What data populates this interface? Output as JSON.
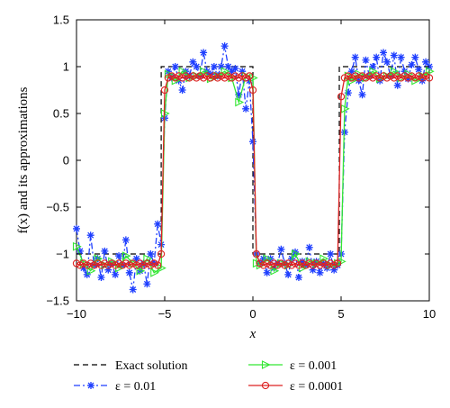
{
  "chart_data": {
    "type": "line",
    "xlabel": "x",
    "ylabel": "f(x) and its approximations",
    "xlim": [
      -10,
      10
    ],
    "ylim": [
      -1.5,
      1.5
    ],
    "xticks": [
      -10,
      -5,
      0,
      5,
      10
    ],
    "yticks": [
      1.5,
      1,
      0.5,
      0,
      -0.5,
      -1,
      -1.5
    ],
    "xtick_labels": [
      "−10",
      "−5",
      "0",
      "5",
      "10"
    ],
    "ytick_labels": [
      "1.5",
      "1",
      "0.5",
      "0",
      "−0.5",
      "−1",
      "−1.5"
    ],
    "grid": false,
    "legend_position": "bottom (below plot, two columns)",
    "series": [
      {
        "name": "Exact solution",
        "style": "dashed",
        "color": "#000000",
        "marker": "none",
        "x": [
          -10,
          -5.2,
          -5.2,
          0,
          0,
          4.9,
          4.9,
          10
        ],
        "y": [
          -1,
          -1,
          1,
          1,
          -1,
          -1,
          1,
          1
        ]
      },
      {
        "name": "ε = 0.01",
        "style": "dash-dot",
        "color": "#1f3fff",
        "marker": "star",
        "x": [
          -10,
          -9.8,
          -9.6,
          -9.4,
          -9.2,
          -9.0,
          -8.8,
          -8.6,
          -8.4,
          -8.2,
          -8.0,
          -7.8,
          -7.6,
          -7.4,
          -7.2,
          -7.0,
          -6.8,
          -6.6,
          -6.4,
          -6.2,
          -6.0,
          -5.8,
          -5.6,
          -5.4,
          -5.2,
          -5.0,
          -4.8,
          -4.6,
          -4.4,
          -4.2,
          -4.0,
          -3.8,
          -3.6,
          -3.4,
          -3.2,
          -3.0,
          -2.8,
          -2.6,
          -2.4,
          -2.2,
          -2.0,
          -1.8,
          -1.6,
          -1.4,
          -1.2,
          -1.0,
          -0.8,
          -0.6,
          -0.4,
          -0.2,
          0.0,
          0.2,
          0.4,
          0.6,
          0.8,
          1.0,
          1.2,
          1.4,
          1.6,
          1.8,
          2.0,
          2.2,
          2.4,
          2.6,
          2.8,
          3.0,
          3.2,
          3.4,
          3.6,
          3.8,
          4.0,
          4.2,
          4.4,
          4.6,
          4.8,
          5.0,
          5.2,
          5.4,
          5.6,
          5.8,
          6.0,
          6.2,
          6.4,
          6.6,
          6.8,
          7.0,
          7.2,
          7.4,
          7.6,
          7.8,
          8.0,
          8.2,
          8.4,
          8.6,
          8.8,
          9.0,
          9.2,
          9.4,
          9.6,
          9.8,
          10.0
        ],
        "y": [
          -0.73,
          -0.97,
          -1.15,
          -1.22,
          -0.8,
          -1.12,
          -1.05,
          -1.25,
          -0.97,
          -1.17,
          -1.1,
          -1.22,
          -1.02,
          -1.12,
          -0.85,
          -1.2,
          -1.38,
          -1.05,
          -1.18,
          -1.1,
          -1.32,
          -1.0,
          -1.1,
          -0.68,
          -0.9,
          0.45,
          0.95,
          0.88,
          1.0,
          0.85,
          0.75,
          0.95,
          0.9,
          1.05,
          1.0,
          0.9,
          1.15,
          0.95,
          0.92,
          1.0,
          0.9,
          1.0,
          1.22,
          1.0,
          0.95,
          0.98,
          0.7,
          0.95,
          0.55,
          0.85,
          0.2,
          -1.0,
          -1.1,
          -1.05,
          -1.2,
          -1.05,
          -1.15,
          -1.1,
          -0.95,
          -1.1,
          -1.22,
          -1.05,
          -0.98,
          -1.25,
          -1.08,
          -1.12,
          -0.93,
          -1.17,
          -1.08,
          -1.2,
          -1.1,
          -1.15,
          -1.0,
          -1.17,
          -1.12,
          -1.0,
          0.3,
          0.72,
          0.95,
          1.1,
          0.85,
          0.7,
          1.07,
          0.9,
          1.0,
          1.1,
          0.85,
          1.15,
          1.05,
          0.9,
          1.12,
          0.8,
          1.1,
          0.95,
          0.87,
          1.02,
          1.1,
          0.97,
          0.85,
          1.05,
          1.0
        ]
      },
      {
        "name": "ε = 0.001",
        "style": "solid",
        "color": "#33e633",
        "marker": "triangle-right",
        "x": [
          -10,
          -9.6,
          -9.2,
          -8.8,
          -8.4,
          -8.0,
          -7.6,
          -7.2,
          -6.8,
          -6.4,
          -6.0,
          -5.6,
          -5.2,
          -5.0,
          -4.8,
          -4.4,
          -4.0,
          -3.6,
          -3.2,
          -2.8,
          -2.4,
          -2.0,
          -1.6,
          -1.2,
          -0.8,
          -0.4,
          0.0,
          0.2,
          0.4,
          0.8,
          1.2,
          1.6,
          2.0,
          2.4,
          2.8,
          3.2,
          3.6,
          4.0,
          4.4,
          4.8,
          5.0,
          5.2,
          5.4,
          5.6,
          6.0,
          6.4,
          6.8,
          7.2,
          7.6,
          8.0,
          8.4,
          8.8,
          9.2,
          9.6,
          10.0
        ],
        "y": [
          -0.92,
          -1.1,
          -1.18,
          -1.05,
          -1.12,
          -1.08,
          -1.15,
          -1.02,
          -1.1,
          -1.18,
          -1.05,
          -1.2,
          -1.15,
          0.5,
          0.92,
          0.85,
          0.95,
          0.88,
          0.9,
          0.95,
          0.87,
          0.9,
          0.95,
          0.88,
          0.62,
          0.9,
          0.88,
          -1.1,
          -1.12,
          -1.05,
          -1.18,
          -1.1,
          -1.12,
          -1.0,
          -1.15,
          -1.08,
          -1.1,
          -1.05,
          -1.12,
          -1.1,
          -1.08,
          0.55,
          0.9,
          0.85,
          0.92,
          0.88,
          0.95,
          0.87,
          0.9,
          0.95,
          0.88,
          0.92,
          0.85,
          0.9,
          0.95
        ]
      },
      {
        "name": "ε = 0.0001",
        "style": "solid",
        "color": "#dd2222",
        "marker": "circle",
        "x": [
          -10,
          -9.8,
          -9.6,
          -9.4,
          -9.2,
          -9.0,
          -8.8,
          -8.6,
          -8.4,
          -8.2,
          -8.0,
          -7.8,
          -7.6,
          -7.4,
          -7.2,
          -7.0,
          -6.8,
          -6.6,
          -6.4,
          -6.2,
          -6.0,
          -5.8,
          -5.6,
          -5.4,
          -5.2,
          -5.0,
          -4.8,
          -4.6,
          -4.4,
          -4.2,
          -4.0,
          -3.8,
          -3.6,
          -3.4,
          -3.2,
          -3.0,
          -2.8,
          -2.6,
          -2.4,
          -2.2,
          -2.0,
          -1.8,
          -1.6,
          -1.4,
          -1.2,
          -1.0,
          -0.8,
          -0.6,
          -0.4,
          -0.2,
          0.0,
          0.2,
          0.4,
          0.6,
          0.8,
          1.0,
          1.2,
          1.4,
          1.6,
          1.8,
          2.0,
          2.2,
          2.4,
          2.6,
          2.8,
          3.0,
          3.2,
          3.4,
          3.6,
          3.8,
          4.0,
          4.2,
          4.4,
          4.6,
          4.8,
          5.0,
          5.2,
          5.4,
          5.6,
          5.8,
          6.0,
          6.2,
          6.4,
          6.6,
          6.8,
          7.0,
          7.2,
          7.4,
          7.6,
          7.8,
          8.0,
          8.2,
          8.4,
          8.6,
          8.8,
          9.0,
          9.2,
          9.4,
          9.6,
          9.8,
          10.0
        ],
        "y": [
          -1.1,
          -1.12,
          -1.1,
          -1.12,
          -1.1,
          -1.12,
          -1.1,
          -1.12,
          -1.1,
          -1.12,
          -1.1,
          -1.12,
          -1.1,
          -1.12,
          -1.1,
          -1.12,
          -1.1,
          -1.12,
          -1.1,
          -1.12,
          -1.1,
          -1.12,
          -1.1,
          -1.12,
          -1.0,
          0.75,
          0.88,
          0.9,
          0.88,
          0.9,
          0.88,
          0.9,
          0.88,
          0.9,
          0.88,
          0.9,
          0.88,
          0.9,
          0.88,
          0.9,
          0.88,
          0.9,
          0.88,
          0.9,
          0.88,
          0.9,
          0.88,
          0.9,
          0.88,
          0.9,
          0.75,
          -1.0,
          -1.1,
          -1.12,
          -1.1,
          -1.12,
          -1.1,
          -1.12,
          -1.1,
          -1.12,
          -1.1,
          -1.12,
          -1.1,
          -1.12,
          -1.1,
          -1.12,
          -1.1,
          -1.12,
          -1.1,
          -1.12,
          -1.1,
          -1.12,
          -1.1,
          -1.12,
          -1.1,
          0.68,
          0.88,
          0.9,
          0.88,
          0.9,
          0.88,
          0.9,
          0.88,
          0.9,
          0.88,
          0.9,
          0.88,
          0.9,
          0.88,
          0.9,
          0.88,
          0.9,
          0.88,
          0.9,
          0.88,
          0.9,
          0.88,
          0.9,
          0.88,
          0.9,
          0.88
        ]
      }
    ]
  }
}
